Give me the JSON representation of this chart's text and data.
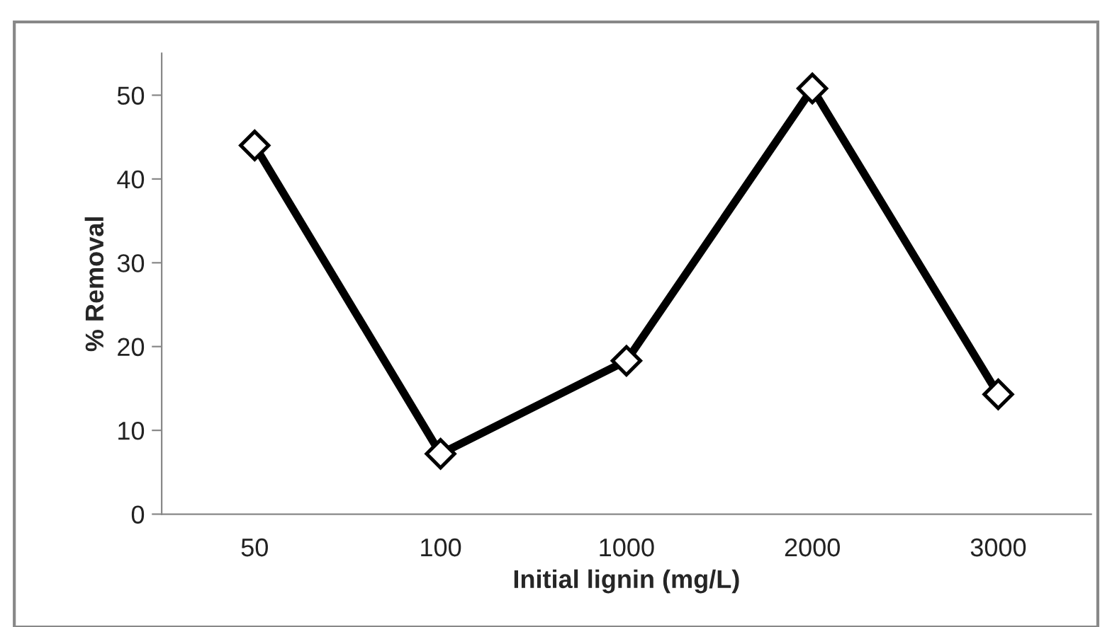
{
  "chart_data": {
    "type": "line",
    "xlabel": "Initial lignin (mg/L)",
    "ylabel": "% Removal",
    "categories": [
      "50",
      "100",
      "1000",
      "2000",
      "3000"
    ],
    "series": [
      {
        "color": "#000000",
        "values": [
          44.0,
          7.2,
          18.3,
          50.8,
          14.3
        ]
      }
    ],
    "ylim": [
      0,
      55
    ],
    "yticks": [
      0,
      10,
      20,
      30,
      40,
      50
    ],
    "grid": false,
    "marker": "diamond",
    "line_style": "solid"
  }
}
